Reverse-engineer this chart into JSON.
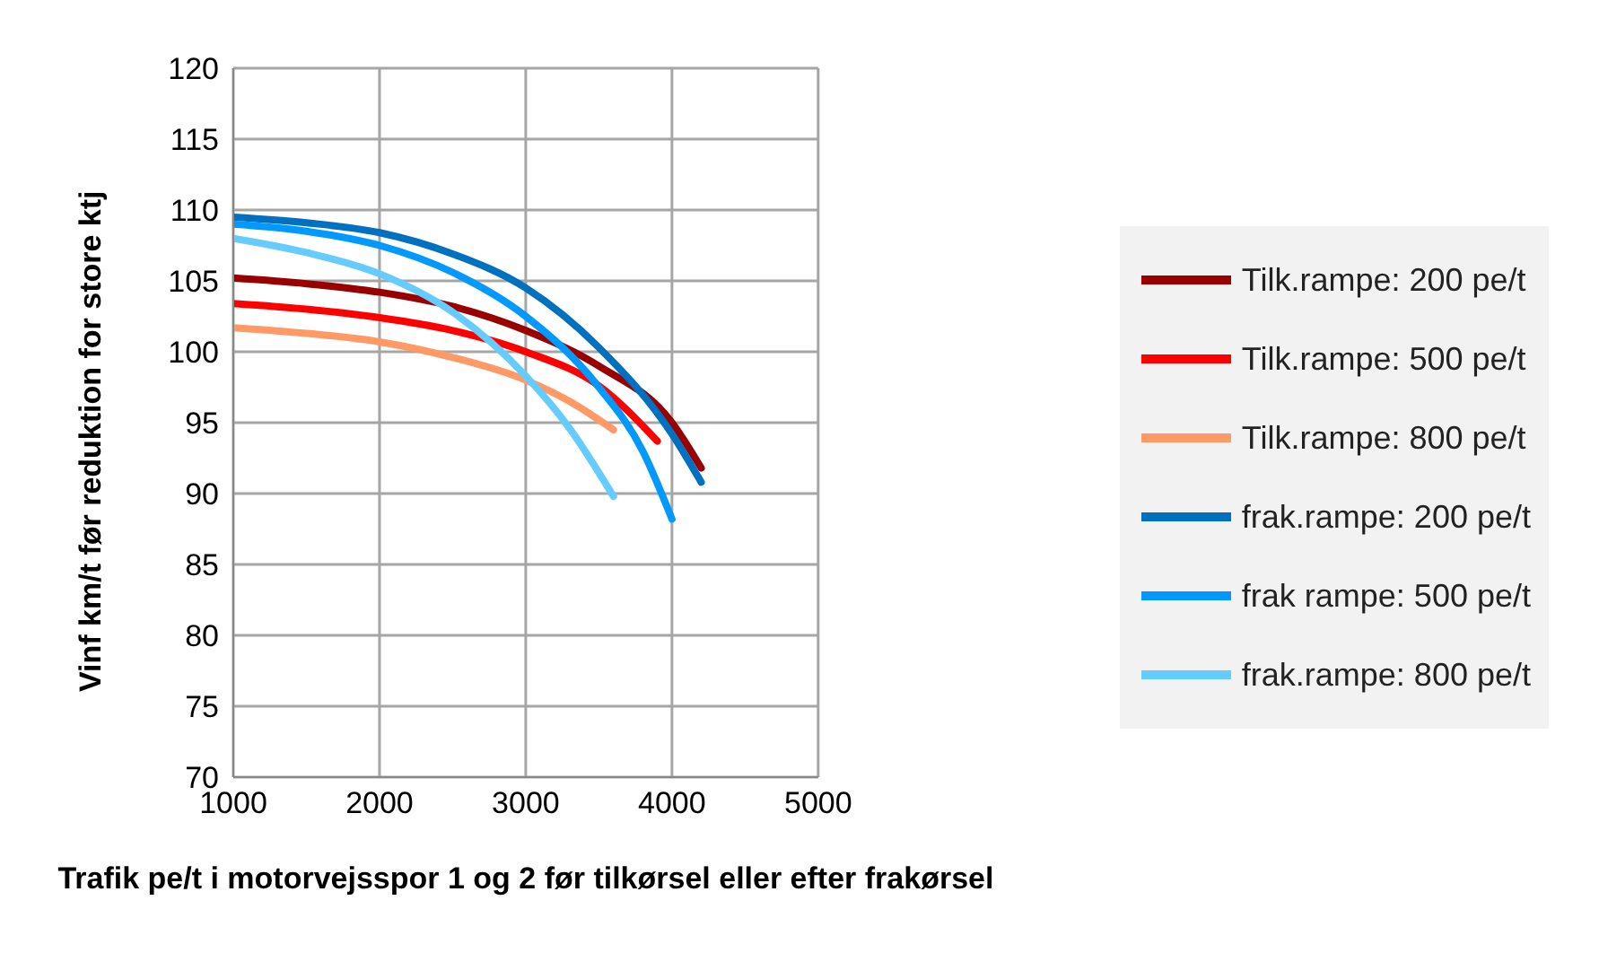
{
  "chart_data": {
    "type": "line",
    "xlabel": "Trafik pe/t i motorvejsspor  1 og 2 før tilkørsel eller efter frakørsel",
    "ylabel": "Vinf km/t før reduktion for store ktj",
    "xlim": [
      1000,
      5000
    ],
    "xticks": [
      1000,
      2000,
      3000,
      4000,
      5000
    ],
    "ylim": [
      70,
      120
    ],
    "yticks": [
      70,
      75,
      80,
      85,
      90,
      95,
      100,
      105,
      110,
      115,
      120
    ],
    "grid": true,
    "legend": "right",
    "marker": "none",
    "line_style": "solid",
    "series": [
      {
        "name": "Tilk.rampe: 200 pe/t",
        "color": "#990000",
        "x": [
          1000,
          1500,
          2000,
          2500,
          3000,
          3500,
          4000,
          4200
        ],
        "values": [
          105.2,
          104.8,
          104.2,
          103.2,
          101.5,
          99,
          95,
          91.8
        ]
      },
      {
        "name": "Tilk.rampe: 500 pe/t",
        "color": "#ff0000",
        "x": [
          1000,
          1500,
          2000,
          2500,
          3000,
          3500,
          3900
        ],
        "values": [
          103.4,
          103,
          102.4,
          101.5,
          100,
          97.6,
          93.7
        ]
      },
      {
        "name": "Tilk.rampe: 800 pe/t",
        "color": "#ff9966",
        "x": [
          1000,
          1500,
          2000,
          2500,
          3000,
          3300,
          3600
        ],
        "values": [
          101.7,
          101.3,
          100.7,
          99.6,
          98,
          96.5,
          94.5
        ]
      },
      {
        "name": "frak.rampe: 200 pe/t",
        "color": "#0070c0",
        "x": [
          1000,
          1500,
          2000,
          2500,
          3000,
          3500,
          4000,
          4200
        ],
        "values": [
          109.5,
          109.1,
          108.4,
          106.9,
          104.5,
          100.3,
          94.2,
          90.8
        ]
      },
      {
        "name": "frak rampe: 500 pe/t",
        "color": "#0099ff",
        "x": [
          1000,
          1500,
          2000,
          2500,
          3000,
          3500,
          3800,
          4000
        ],
        "values": [
          109,
          108.5,
          107.5,
          105.6,
          102.5,
          97.5,
          93,
          88.2
        ]
      },
      {
        "name": "frak.rampe: 800 pe/t",
        "color": "#66ccff",
        "x": [
          1000,
          1500,
          2000,
          2500,
          3000,
          3300,
          3600
        ],
        "values": [
          108,
          107,
          105.5,
          102.8,
          98.3,
          94.6,
          89.8
        ]
      }
    ]
  }
}
